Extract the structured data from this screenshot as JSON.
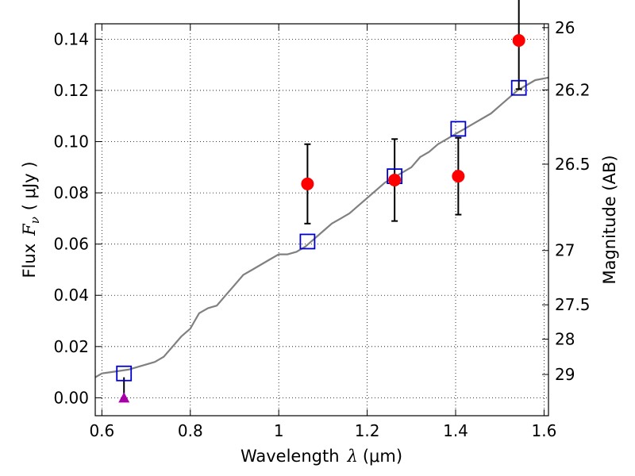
{
  "chart_data": {
    "type": "scatter",
    "title": "",
    "xlabel": "Wavelength",
    "xlabel_symbol": "λ",
    "xlabel_unit": "(μm)",
    "ylabel": "Flux",
    "ylabel_symbol": "F",
    "ylabel_sub": "ν",
    "ylabel_unit": "( μJy )",
    "y2label": "Magnitude (AB)",
    "xlim": [
      0.585,
      1.61
    ],
    "ylim": [
      -0.007,
      0.146
    ],
    "grid": true,
    "grid_style": "dotted",
    "x_ticks": [
      {
        "value": 0.6,
        "label": "0.6"
      },
      {
        "value": 0.8,
        "label": "0.8"
      },
      {
        "value": 1.0,
        "label": "1"
      },
      {
        "value": 1.2,
        "label": "1.2"
      },
      {
        "value": 1.4,
        "label": "1.4"
      },
      {
        "value": 1.6,
        "label": "1.6"
      }
    ],
    "y_ticks": [
      {
        "value": 0.0,
        "label": "0.00"
      },
      {
        "value": 0.02,
        "label": "0.02"
      },
      {
        "value": 0.04,
        "label": "0.04"
      },
      {
        "value": 0.06,
        "label": "0.06"
      },
      {
        "value": 0.08,
        "label": "0.08"
      },
      {
        "value": 0.1,
        "label": "0.10"
      },
      {
        "value": 0.12,
        "label": "0.12"
      },
      {
        "value": 0.14,
        "label": "0.14"
      }
    ],
    "y2_ticks": [
      {
        "label": "26",
        "flux": 0.1445
      },
      {
        "label": "26.2",
        "flux": 0.1202
      },
      {
        "label": "26.5",
        "flux": 0.0912
      },
      {
        "label": "27",
        "flux": 0.0575
      },
      {
        "label": "27.5",
        "flux": 0.0363
      },
      {
        "label": "28",
        "flux": 0.0229
      },
      {
        "label": "29",
        "flux": 0.0091
      }
    ],
    "series": [
      {
        "kind": "model-spectrum",
        "color": "#808080",
        "x": [
          0.585,
          0.6,
          0.62,
          0.64,
          0.66,
          0.68,
          0.7,
          0.72,
          0.74,
          0.76,
          0.78,
          0.8,
          0.81,
          0.82,
          0.84,
          0.86,
          0.88,
          0.9,
          0.92,
          0.94,
          0.96,
          0.98,
          1.0,
          1.02,
          1.04,
          1.06,
          1.08,
          1.1,
          1.12,
          1.14,
          1.16,
          1.18,
          1.2,
          1.22,
          1.24,
          1.26,
          1.28,
          1.3,
          1.32,
          1.34,
          1.36,
          1.38,
          1.4,
          1.42,
          1.44,
          1.46,
          1.48,
          1.5,
          1.52,
          1.54,
          1.56,
          1.58,
          1.61
        ],
        "y": [
          0.008,
          0.0095,
          0.01,
          0.0105,
          0.011,
          0.012,
          0.013,
          0.014,
          0.016,
          0.02,
          0.024,
          0.027,
          0.03,
          0.033,
          0.035,
          0.036,
          0.04,
          0.044,
          0.048,
          0.05,
          0.052,
          0.054,
          0.056,
          0.056,
          0.057,
          0.059,
          0.062,
          0.065,
          0.068,
          0.07,
          0.072,
          0.075,
          0.078,
          0.081,
          0.084,
          0.086,
          0.088,
          0.09,
          0.094,
          0.096,
          0.099,
          0.101,
          0.103,
          0.105,
          0.107,
          0.109,
          0.111,
          0.114,
          0.117,
          0.12,
          0.122,
          0.124,
          0.125
        ]
      },
      {
        "kind": "model-photometry",
        "marker": "open-square",
        "color": "#0000cc",
        "x": [
          0.65,
          1.065,
          1.262,
          1.406,
          1.543
        ],
        "y": [
          0.0095,
          0.061,
          0.0865,
          0.105,
          0.121
        ]
      },
      {
        "kind": "observed",
        "marker": "filled-circle",
        "color": "#ff0000",
        "x": [
          1.065,
          1.262,
          1.406,
          1.543
        ],
        "y": [
          0.0835,
          0.085,
          0.0865,
          0.1395
        ],
        "yerr": [
          0.0155,
          0.016,
          0.015,
          0.019
        ]
      },
      {
        "kind": "upper-limit",
        "marker": "filled-triangle",
        "color": "#aa00aa",
        "x": [
          0.65
        ],
        "y": [
          0.0
        ],
        "err_top": [
          0.008
        ]
      }
    ]
  }
}
